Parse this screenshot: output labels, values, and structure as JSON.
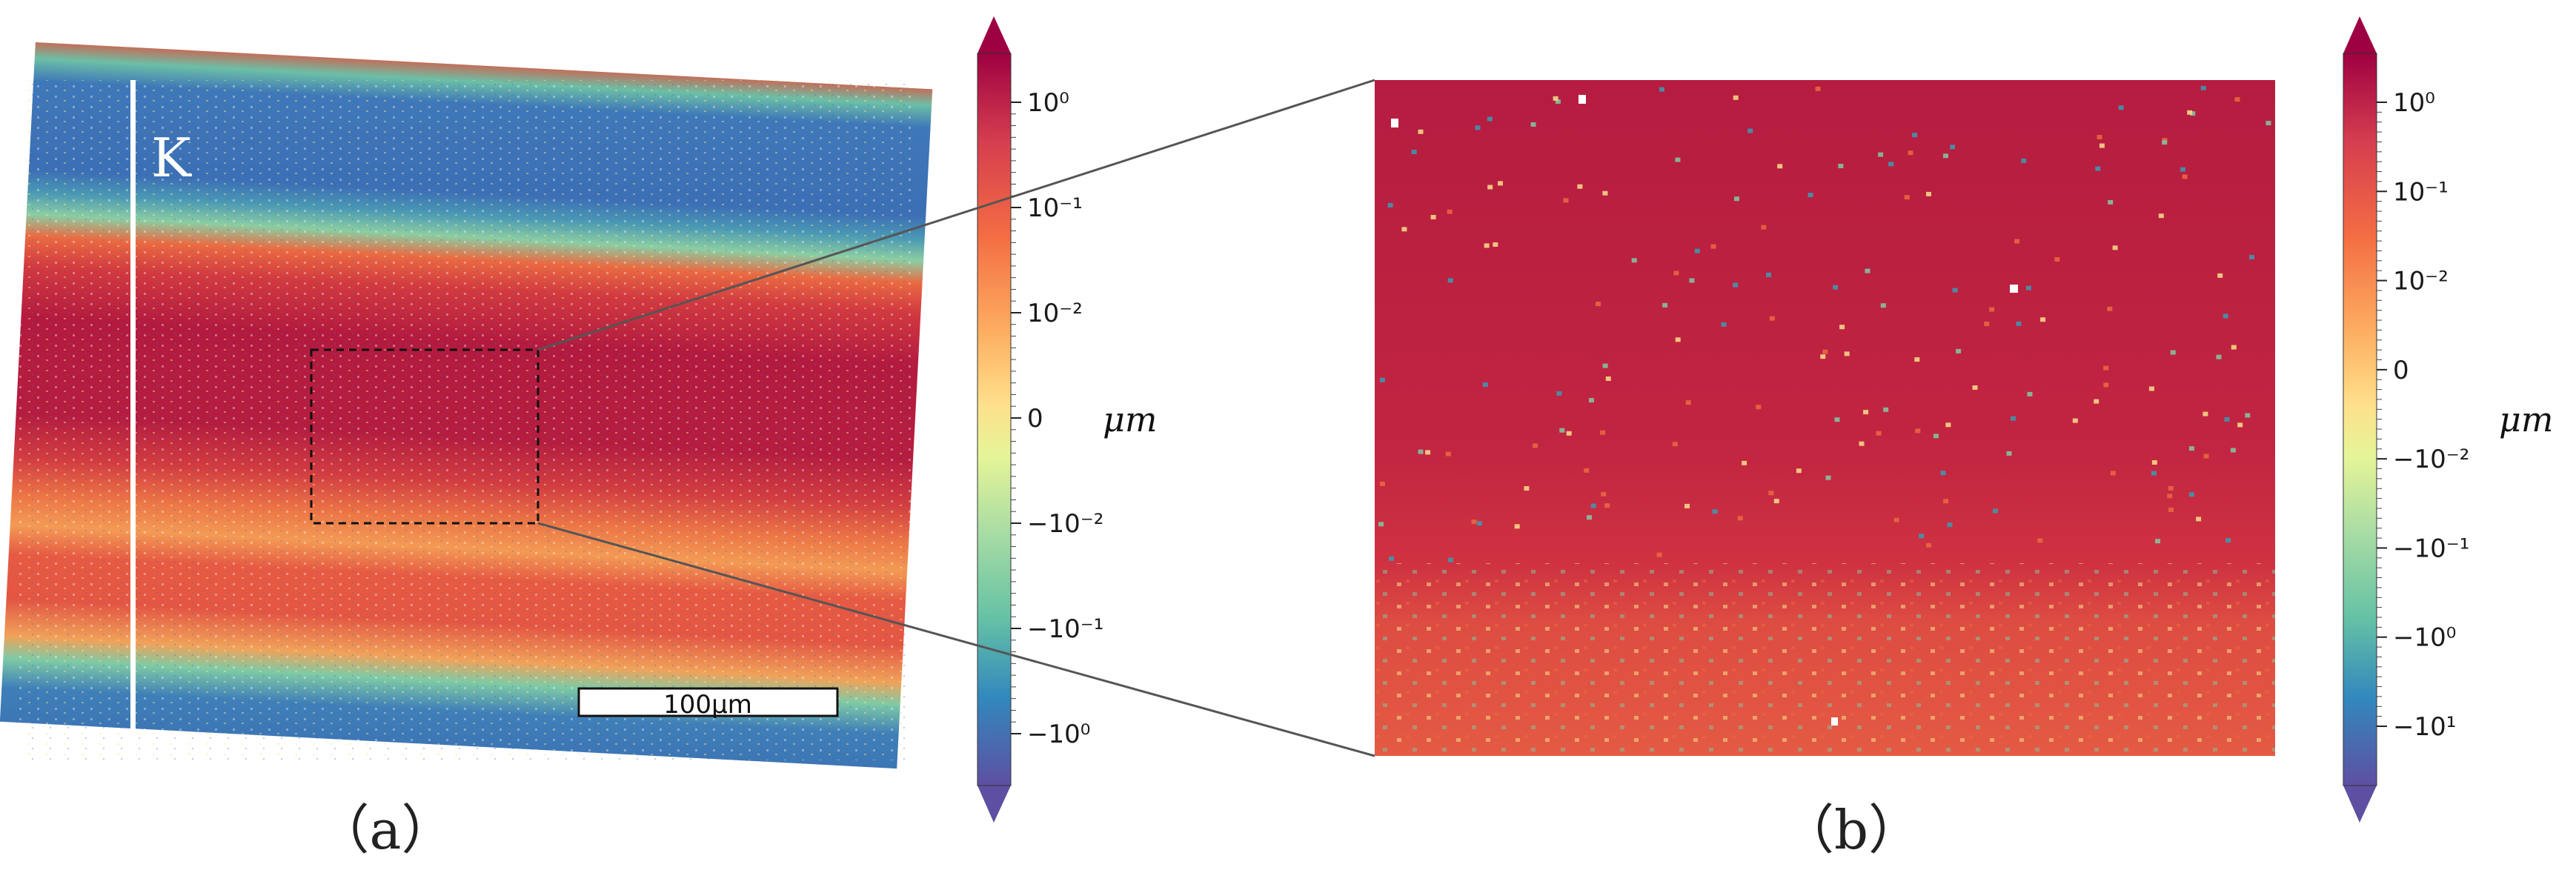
{
  "panel_a": {
    "label": "（a）",
    "line_label": "K",
    "scalebar_label": "100μm"
  },
  "panel_b": {
    "label": "（b）"
  },
  "colorbar_a": {
    "unit": "μm",
    "ticks": [
      "10⁰",
      "10⁻¹",
      "10⁻²",
      "0",
      "−10⁻²",
      "−10⁻¹",
      "−10⁰"
    ]
  },
  "colorbar_b": {
    "unit": "μm",
    "ticks": [
      "10⁰",
      "10⁻¹",
      "10⁻²",
      "0",
      "−10⁻²",
      "−10⁻¹",
      "−10⁰",
      "−10¹"
    ]
  },
  "colors": {
    "dark_red": "#a8163f",
    "red": "#c9273f",
    "orange": "#ea6a42",
    "yellow": "#f7e08b",
    "green": "#7fcaa5",
    "teal": "#3a9bb6",
    "blue": "#3c6fb5",
    "purple": "#5b4a9c"
  }
}
